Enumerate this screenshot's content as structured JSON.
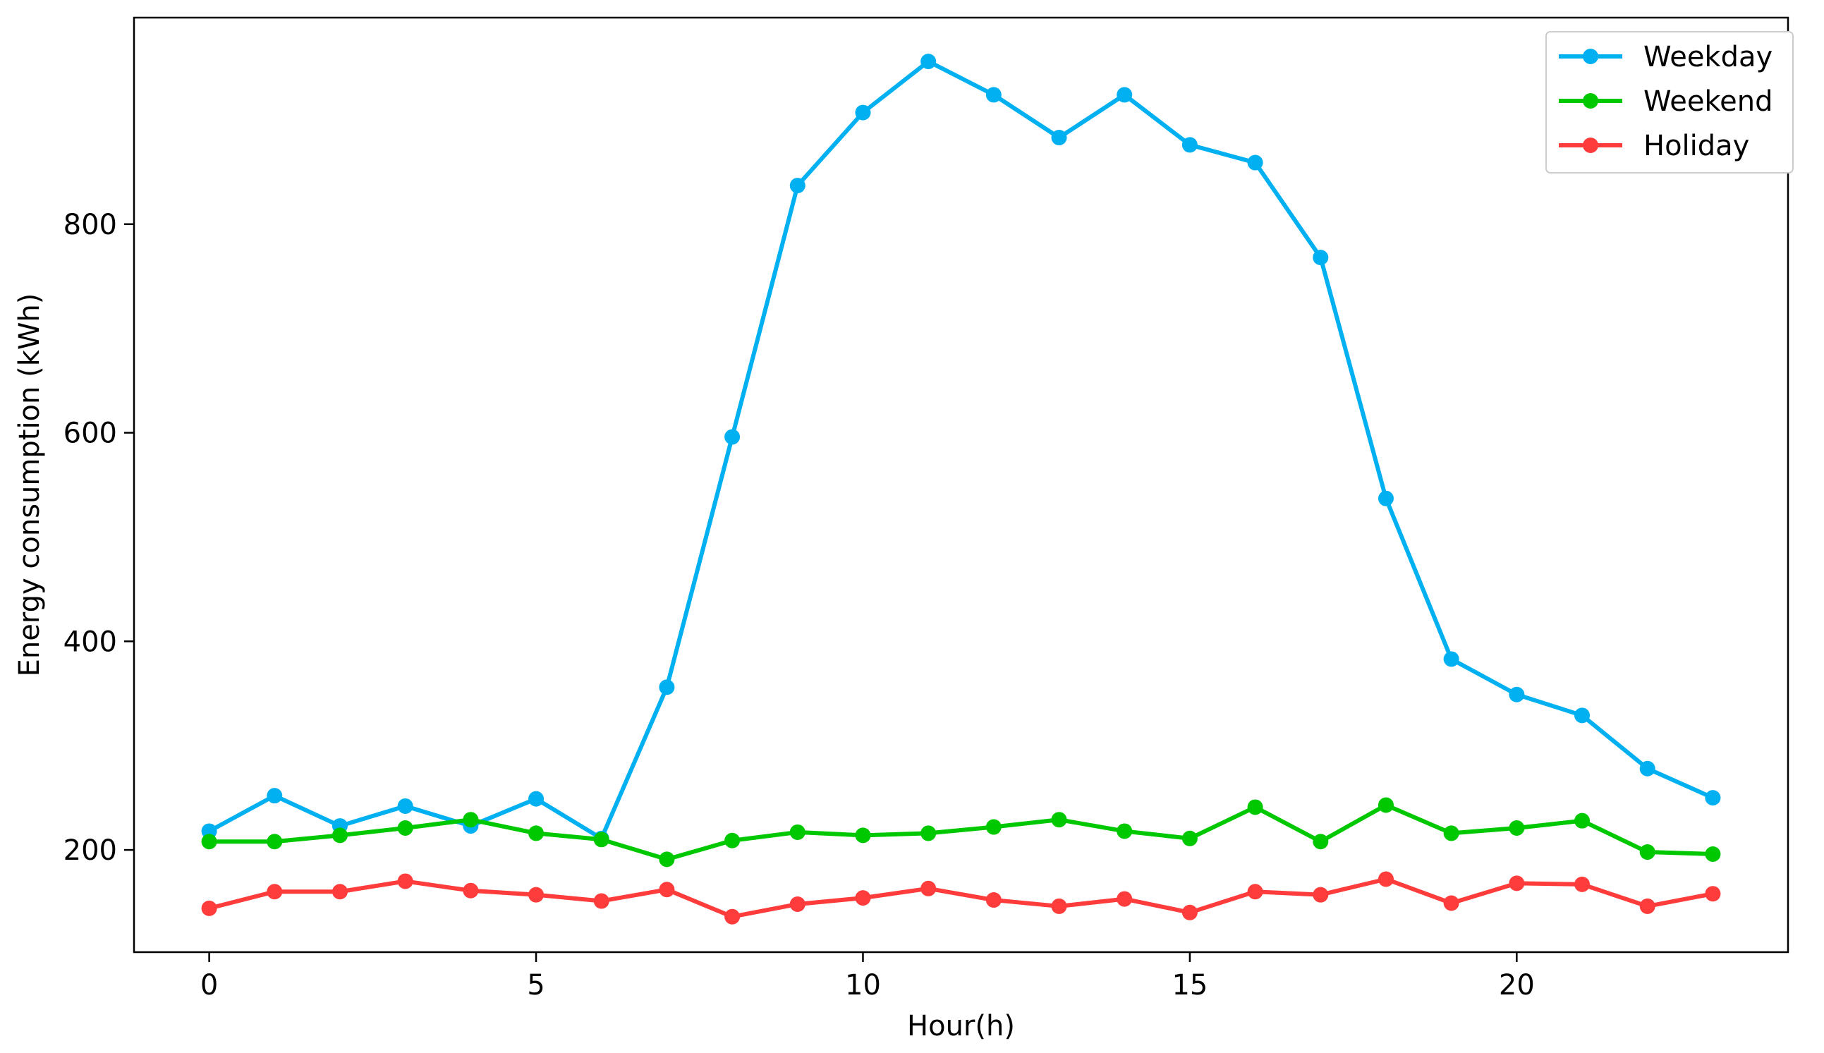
{
  "chart_data": {
    "type": "line",
    "xlabel": "Hour(h)",
    "ylabel": "Energy consumption (kWh)",
    "x": [
      0,
      1,
      2,
      3,
      4,
      5,
      6,
      7,
      8,
      9,
      10,
      11,
      12,
      13,
      14,
      15,
      16,
      17,
      18,
      19,
      20,
      21,
      22,
      23
    ],
    "xlim": [
      -1.15,
      24.15
    ],
    "ylim": [
      102,
      998
    ],
    "xticks": [
      0,
      5,
      10,
      15,
      20
    ],
    "xtick_labels": [
      "0",
      "5",
      "10",
      "15",
      "20"
    ],
    "yticks": [
      200,
      400,
      600,
      800
    ],
    "ytick_labels": [
      "200",
      "400",
      "600",
      "800"
    ],
    "grid": false,
    "legend_position": "upper right",
    "series": [
      {
        "name": "Weekday",
        "color": "#00b0f0",
        "values": [
          218,
          252,
          223,
          242,
          223,
          249,
          211,
          356,
          596,
          837,
          907,
          956,
          924,
          883,
          924,
          876,
          859,
          768,
          537,
          383,
          349,
          329,
          278,
          250
        ]
      },
      {
        "name": "Weekend",
        "color": "#00c800",
        "values": [
          208,
          208,
          214,
          221,
          229,
          216,
          210,
          191,
          209,
          217,
          214,
          216,
          222,
          229,
          218,
          211,
          241,
          208,
          243,
          216,
          221,
          228,
          198,
          196
        ]
      },
      {
        "name": "Holiday",
        "color": "#ff3c3c",
        "values": [
          144,
          160,
          160,
          170,
          161,
          157,
          151,
          162,
          136,
          148,
          154,
          163,
          152,
          146,
          153,
          140,
          160,
          157,
          172,
          149,
          168,
          167,
          146,
          158
        ]
      }
    ]
  }
}
